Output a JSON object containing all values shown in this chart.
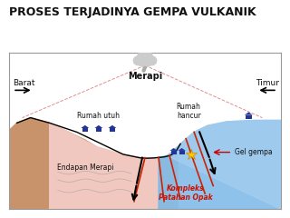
{
  "title": "PROSES TERJADINYA GEMPA VULKANIK",
  "title_fontsize": 9,
  "bg_color": "#ffffff",
  "labels": {
    "barat": "Barat",
    "timur": "Timur",
    "merapi": "Merapi",
    "rumah_utuh": "Rumah utuh",
    "rumah_hancur": "Rumah\nhancur",
    "endapan_merapi": "Endapan Merapi",
    "gel_gempa": "Gel gempa",
    "kompleks_patahan": "Kompleks\nPatahan Opak"
  },
  "colors": {
    "terrain_brown": "#c8936a",
    "terrain_pink": "#f0c8c0",
    "water_blue": "#7ab8e8",
    "water_blue2": "#a8d0f0",
    "fault_red": "#cc2200",
    "dashed_pink": "#e08080",
    "house_blue": "#223399",
    "house_roof": "#223399",
    "star_yellow": "#ffcc00",
    "gel_arrow": "#cc0000",
    "text_dark": "#111111",
    "text_red": "#cc1100",
    "box_border": "#999999",
    "black": "#000000",
    "wave_gray": "#999999"
  }
}
